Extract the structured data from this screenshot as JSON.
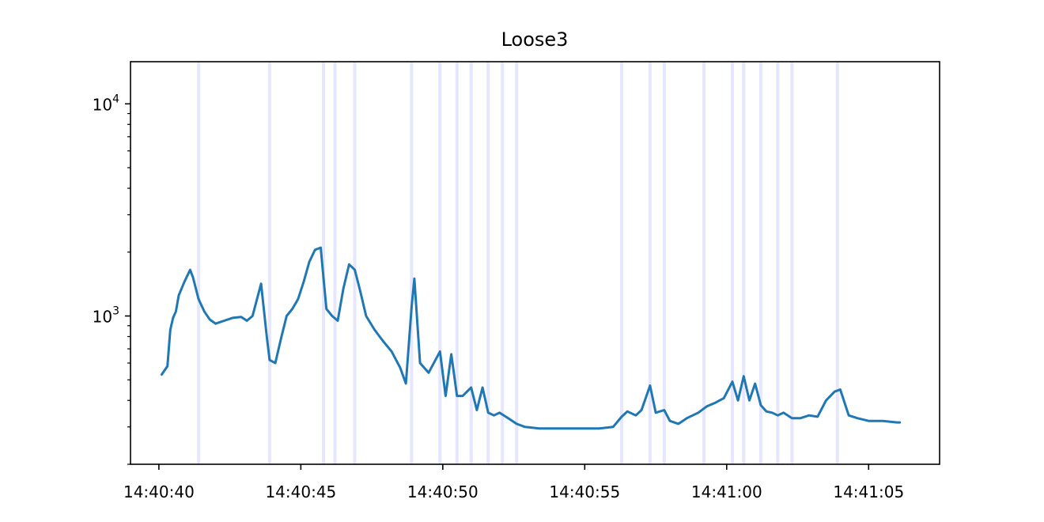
{
  "chart_data": {
    "type": "line",
    "title": "Loose3",
    "xlabel": "",
    "ylabel": "",
    "yscale": "log",
    "ylim": [
      200,
      15800
    ],
    "xlim": [
      "14:40:39.0",
      "14:41:07.5"
    ],
    "x_ticks": [
      "14:40:40",
      "14:40:45",
      "14:40:50",
      "14:40:55",
      "14:41:00",
      "14:41:05"
    ],
    "y_ticks": [
      {
        "base": "10",
        "exp": "3",
        "value": 1000
      },
      {
        "base": "10",
        "exp": "4",
        "value": 10000
      }
    ],
    "grid": false,
    "legend": "none",
    "colors": {
      "line": "#1f77b4",
      "markers": "#e6e6ff",
      "axes": "#000000"
    },
    "vertical_markers": [
      "14:40:41.4",
      "14:40:43.9",
      "14:40:45.8",
      "14:40:46.2",
      "14:40:46.9",
      "14:40:48.9",
      "14:40:49.9",
      "14:40:50.5",
      "14:40:51.0",
      "14:40:51.6",
      "14:40:52.1",
      "14:40:52.6",
      "14:40:56.3",
      "14:40:57.3",
      "14:40:57.8",
      "14:40:59.2",
      "14:41:00.2",
      "14:41:00.6",
      "14:41:01.2",
      "14:41:01.8",
      "14:41:02.3",
      "14:41:03.9"
    ],
    "series": [
      {
        "x": [
          "14:40:40.1",
          "14:40:40.3",
          "14:40:40.4",
          "14:40:40.5",
          "14:40:40.6",
          "14:40:40.7",
          "14:40:40.9",
          "14:40:41.1",
          "14:40:41.2",
          "14:40:41.4",
          "14:40:41.6",
          "14:40:41.8",
          "14:40:42.0",
          "14:40:42.3",
          "14:40:42.6",
          "14:40:42.9",
          "14:40:43.1",
          "14:40:43.3",
          "14:40:43.6",
          "14:40:43.8",
          "14:40:43.9",
          "14:40:44.1",
          "14:40:44.3",
          "14:40:44.5",
          "14:40:44.7",
          "14:40:44.9",
          "14:40:45.1",
          "14:40:45.3",
          "14:40:45.5",
          "14:40:45.7",
          "14:40:45.8",
          "14:40:45.9",
          "14:40:46.1",
          "14:40:46.3",
          "14:40:46.5",
          "14:40:46.7",
          "14:40:46.9",
          "14:40:47.1",
          "14:40:47.3",
          "14:40:47.6",
          "14:40:47.9",
          "14:40:48.2",
          "14:40:48.5",
          "14:40:48.7",
          "14:40:48.9",
          "14:40:49.0",
          "14:40:49.2",
          "14:40:49.5",
          "14:40:49.9",
          "14:40:50.1",
          "14:40:50.3",
          "14:40:50.5",
          "14:40:50.7",
          "14:40:51.0",
          "14:40:51.2",
          "14:40:51.4",
          "14:40:51.6",
          "14:40:51.8",
          "14:40:52.0",
          "14:40:52.3",
          "14:40:52.6",
          "14:40:52.9",
          "14:40:53.4",
          "14:40:54.0",
          "14:40:54.5",
          "14:40:55.0",
          "14:40:55.5",
          "14:40:56.0",
          "14:40:56.3",
          "14:40:56.5",
          "14:40:56.8",
          "14:40:57.0",
          "14:40:57.3",
          "14:40:57.5",
          "14:40:57.8",
          "14:40:58.0",
          "14:40:58.3",
          "14:40:58.6",
          "14:40:59.0",
          "14:40:59.3",
          "14:40:59.6",
          "14:40:59.9",
          "14:41:00.2",
          "14:41:00.4",
          "14:41:00.6",
          "14:41:00.8",
          "14:41:01.0",
          "14:41:01.2",
          "14:41:01.4",
          "14:41:01.6",
          "14:41:01.8",
          "14:41:02.0",
          "14:41:02.3",
          "14:41:02.6",
          "14:41:02.9",
          "14:41:03.2",
          "14:41:03.5",
          "14:41:03.8",
          "14:41:04.0",
          "14:41:04.3",
          "14:41:04.6",
          "14:41:05.0",
          "14:41:05.5",
          "14:41:06.0",
          "14:41:06.1"
        ],
        "y": [
          530,
          580,
          860,
          980,
          1050,
          1250,
          1450,
          1650,
          1520,
          1200,
          1050,
          960,
          920,
          950,
          980,
          990,
          950,
          1000,
          1420,
          800,
          620,
          600,
          780,
          1000,
          1080,
          1200,
          1450,
          1800,
          2050,
          2100,
          1500,
          1080,
          1000,
          950,
          1350,
          1750,
          1650,
          1300,
          1000,
          860,
          760,
          680,
          570,
          480,
          1100,
          1500,
          600,
          540,
          680,
          420,
          660,
          420,
          420,
          460,
          360,
          460,
          350,
          340,
          350,
          330,
          310,
          300,
          295,
          295,
          295,
          295,
          295,
          300,
          335,
          355,
          340,
          360,
          470,
          350,
          360,
          320,
          310,
          330,
          350,
          375,
          390,
          410,
          490,
          400,
          520,
          400,
          480,
          380,
          355,
          350,
          340,
          350,
          330,
          330,
          340,
          335,
          400,
          440,
          450,
          340,
          330,
          320,
          320,
          315,
          315
        ]
      }
    ]
  }
}
